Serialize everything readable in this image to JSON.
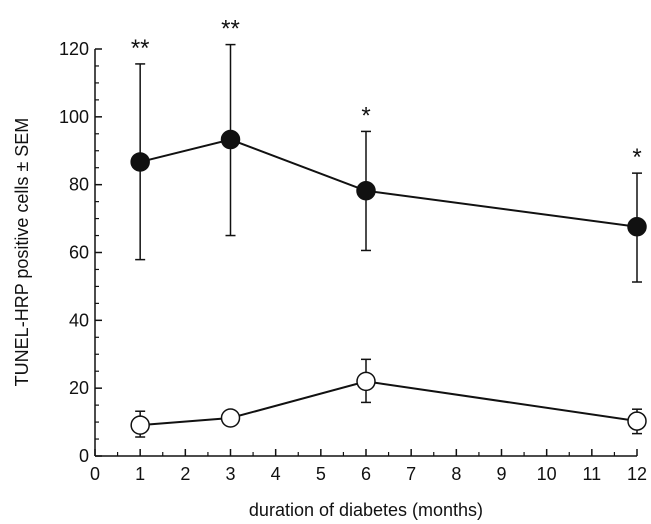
{
  "chart_data": {
    "type": "line",
    "xlabel": "duration of diabetes (months)",
    "ylabel": "TUNEL-HRP positive cells ± SEM",
    "xlim": [
      0,
      12
    ],
    "ylim": [
      0,
      120
    ],
    "x_ticks": [
      "0",
      "1",
      "2",
      "3",
      "4",
      "5",
      "6",
      "7",
      "8",
      "9",
      "10",
      "11",
      "12"
    ],
    "y_ticks": [
      "0",
      "20",
      "40",
      "60",
      "80",
      "100",
      "120"
    ],
    "grid": false,
    "series": [
      {
        "marker": "filled-circle",
        "x": [
          1,
          3,
          6,
          12
        ],
        "y": [
          86.7,
          93.3,
          78.2,
          67.6
        ],
        "err_upper": [
          115.6,
          121.3,
          95.7,
          83.4
        ],
        "err_lower": [
          57.9,
          65.0,
          60.6,
          51.3
        ],
        "annotations": [
          "**",
          "**",
          "*",
          "*"
        ]
      },
      {
        "marker": "open-circle",
        "x": [
          1,
          3,
          6,
          12
        ],
        "y": [
          9.1,
          11.2,
          22.0,
          10.3
        ],
        "err_upper": [
          13.2,
          13.2,
          28.5,
          13.8
        ],
        "err_lower": [
          5.6,
          9.3,
          15.8,
          6.6
        ]
      }
    ]
  }
}
